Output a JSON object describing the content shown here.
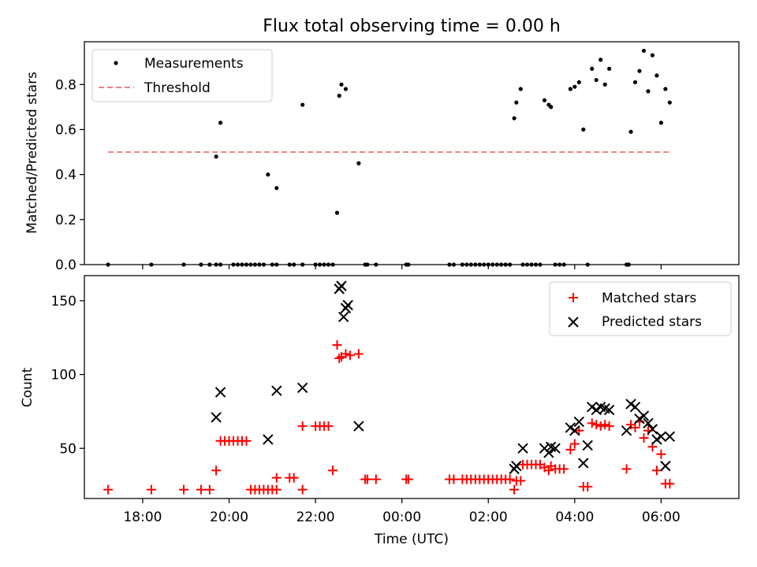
{
  "chart_data": [
    {
      "type": "scatter",
      "title": "Flux total observing time = 0.00 h",
      "ylabel": "Matched/Predicted stars",
      "xlabel": "",
      "xlim": [
        -7.35,
        7.8
      ],
      "ylim": [
        0.0,
        0.99
      ],
      "yticks": [
        0.0,
        0.2,
        0.4,
        0.6,
        0.8
      ],
      "ytick_labels": [
        "0.0",
        "0.2",
        "0.4",
        "0.6",
        "0.8"
      ],
      "legend": "upper-left",
      "series": [
        {
          "name": "Measurements",
          "marker": "dot",
          "color": "#000000",
          "x": [
            -6.8,
            -5.8,
            -5.05,
            -4.65,
            -4.45,
            -4.3,
            -4.3,
            -4.2,
            -4.2,
            -3.9,
            -3.8,
            -3.7,
            -3.6,
            -3.5,
            -3.4,
            -3.3,
            -3.2,
            -3.1,
            -3.0,
            -2.9,
            -2.9,
            -2.6,
            -2.5,
            -2.3,
            -2.3,
            -2.0,
            -1.9,
            -1.8,
            -1.7,
            -1.6,
            -1.5,
            -1.45,
            -1.4,
            -1.3,
            -1.0,
            -0.85,
            -0.8,
            -0.6,
            0.1,
            0.15,
            1.1,
            1.2,
            1.4,
            1.5,
            1.6,
            1.7,
            1.8,
            1.9,
            2.0,
            2.1,
            2.2,
            2.3,
            2.4,
            2.5,
            2.6,
            2.65,
            2.75,
            2.8,
            2.9,
            3.0,
            3.1,
            3.2,
            3.3,
            3.4,
            3.45,
            3.55,
            3.65,
            3.75,
            3.9,
            4.0,
            4.1,
            4.2,
            4.3,
            4.4,
            4.5,
            4.6,
            4.7,
            4.8,
            5.2,
            5.25,
            5.3,
            5.4,
            5.5,
            5.6,
            5.7,
            5.8,
            5.9,
            6.0,
            6.1,
            6.2
          ],
          "y": [
            0.0,
            0.0,
            0.0,
            0.0,
            0.0,
            0.0,
            0.48,
            0.0,
            0.63,
            0.0,
            0.0,
            0.0,
            0.0,
            0.0,
            0.0,
            0.0,
            0.0,
            0.4,
            0.0,
            0.0,
            0.34,
            0.0,
            0.0,
            0.0,
            0.71,
            0.0,
            0.0,
            0.0,
            0.0,
            0.0,
            0.23,
            0.75,
            0.8,
            0.78,
            0.45,
            0.0,
            0.0,
            0.0,
            0.0,
            0.0,
            0.0,
            0.0,
            0.0,
            0.0,
            0.0,
            0.0,
            0.0,
            0.0,
            0.0,
            0.0,
            0.0,
            0.0,
            0.0,
            0.0,
            0.65,
            0.72,
            0.78,
            0.0,
            0.0,
            0.0,
            0.0,
            0.0,
            0.73,
            0.71,
            0.7,
            0.0,
            0.0,
            0.0,
            0.78,
            0.79,
            0.81,
            0.6,
            0.0,
            0.87,
            0.82,
            0.91,
            0.8,
            0.87,
            0.0,
            0.0,
            0.59,
            0.81,
            0.86,
            0.95,
            0.77,
            0.93,
            0.84,
            0.63,
            0.78,
            0.72
          ]
        },
        {
          "name": "Threshold",
          "marker": "dashed-line",
          "color": "#f08080",
          "x": [
            -6.8,
            6.2
          ],
          "y": [
            0.5,
            0.5
          ]
        }
      ]
    },
    {
      "type": "scatter",
      "title": "",
      "ylabel": "Count",
      "xlabel": "Time (UTC)",
      "xlim": [
        -7.35,
        7.8
      ],
      "ylim": [
        16,
        167
      ],
      "yticks": [
        50,
        100,
        150
      ],
      "ytick_labels": [
        "50",
        "100",
        "150"
      ],
      "xticks": [
        -6,
        -4,
        -2,
        0,
        2,
        4,
        6
      ],
      "xtick_labels": [
        "18:00",
        "20:00",
        "22:00",
        "00:00",
        "02:00",
        "04:00",
        "06:00"
      ],
      "legend": "upper-right",
      "series": [
        {
          "name": "Matched stars",
          "marker": "plus",
          "color": "#ff0000",
          "x": [
            -6.8,
            -5.8,
            -5.05,
            -4.65,
            -4.45,
            -4.3,
            -4.2,
            -4.1,
            -4.0,
            -3.9,
            -3.8,
            -3.7,
            -3.6,
            -3.5,
            -3.4,
            -3.3,
            -3.2,
            -3.1,
            -3.0,
            -2.9,
            -2.9,
            -2.6,
            -2.5,
            -2.3,
            -2.3,
            -2.0,
            -1.9,
            -1.8,
            -1.7,
            -1.6,
            -1.5,
            -1.45,
            -1.4,
            -1.3,
            -1.2,
            -1.0,
            -0.85,
            -0.8,
            -0.6,
            0.1,
            0.15,
            1.1,
            1.2,
            1.4,
            1.5,
            1.6,
            1.7,
            1.8,
            1.9,
            2.0,
            2.1,
            2.2,
            2.3,
            2.4,
            2.5,
            2.6,
            2.65,
            2.75,
            2.8,
            2.9,
            3.0,
            3.1,
            3.2,
            3.3,
            3.4,
            3.45,
            3.55,
            3.65,
            3.75,
            3.9,
            4.0,
            4.1,
            4.2,
            4.3,
            4.4,
            4.5,
            4.6,
            4.7,
            4.8,
            5.2,
            5.3,
            5.4,
            5.5,
            5.6,
            5.7,
            5.8,
            5.9,
            6.0,
            6.1,
            6.2
          ],
          "y": [
            22,
            22,
            22,
            22,
            22,
            35,
            55,
            55,
            55,
            55,
            55,
            55,
            55,
            22,
            22,
            22,
            22,
            22,
            22,
            22,
            30,
            30,
            30,
            22,
            65,
            65,
            65,
            65,
            65,
            35,
            120,
            111,
            112,
            114,
            113,
            114,
            29,
            29,
            29,
            29,
            29,
            29,
            29,
            29,
            29,
            29,
            29,
            29,
            29,
            29,
            29,
            29,
            29,
            29,
            29,
            22,
            28,
            28,
            39,
            39,
            39,
            39,
            39,
            37,
            35,
            38,
            36,
            36,
            36,
            49,
            53,
            62,
            24,
            24,
            67,
            66,
            65,
            66,
            65,
            36,
            66,
            64,
            68,
            57,
            62,
            51,
            35,
            46,
            26,
            26
          ]
        },
        {
          "name": "Predicted stars",
          "marker": "x",
          "color": "#000000",
          "x": [
            -4.3,
            -4.2,
            -3.1,
            -2.9,
            -2.3,
            -1.45,
            -1.4,
            -1.35,
            -1.3,
            -1.25,
            -1.0,
            2.6,
            2.65,
            2.8,
            3.3,
            3.4,
            3.45,
            3.55,
            3.9,
            4.0,
            4.1,
            4.2,
            4.3,
            4.4,
            4.5,
            4.6,
            4.7,
            4.8,
            5.2,
            5.3,
            5.4,
            5.5,
            5.6,
            5.7,
            5.8,
            5.9,
            6.0,
            6.1,
            6.2
          ],
          "y": [
            71,
            88,
            56,
            89,
            91,
            158,
            160,
            139,
            145,
            147,
            65,
            36,
            38,
            50,
            50,
            47,
            51,
            50,
            64,
            62,
            68,
            40,
            52,
            78,
            76,
            78,
            77,
            76,
            62,
            80,
            78,
            70,
            72,
            67,
            63,
            56,
            58,
            38,
            58
          ]
        }
      ]
    }
  ]
}
